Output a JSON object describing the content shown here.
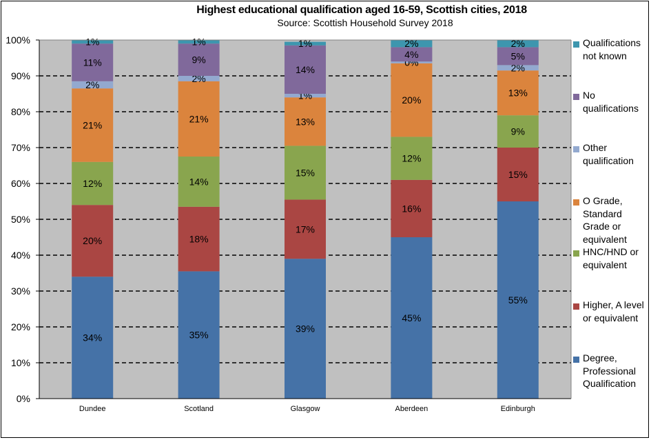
{
  "chart_data": {
    "type": "bar",
    "stacked": true,
    "title": "Highest educational qualification aged 16-59, Scottish cities, 2018",
    "subtitle": "Source: Scottish Household Survey 2018",
    "categories": [
      "Dundee",
      "Scotland",
      "Glasgow",
      "Aberdeen",
      "Edinburgh"
    ],
    "y_ticks": [
      "0%",
      "10%",
      "20%",
      "30%",
      "40%",
      "50%",
      "60%",
      "70%",
      "80%",
      "90%",
      "100%"
    ],
    "ylim": [
      0,
      100
    ],
    "grid": true,
    "legend_position": "right",
    "series": [
      {
        "name": "Degree, Professional Qualification",
        "color": "#4572A7",
        "values": [
          34,
          35.5,
          39,
          45,
          55
        ],
        "labels": [
          "34%",
          "35%",
          "39%",
          "45%",
          "55%"
        ]
      },
      {
        "name": "Higher, A level or equivalent",
        "color": "#AA4643",
        "values": [
          20,
          18,
          16.5,
          16,
          15
        ],
        "labels": [
          "20%",
          "18%",
          "17%",
          "16%",
          "15%"
        ]
      },
      {
        "name": "HNC/HND or equivalent",
        "color": "#89A54E",
        "values": [
          12,
          14,
          15,
          12,
          9
        ],
        "labels": [
          "12%",
          "14%",
          "15%",
          "12%",
          "9%"
        ]
      },
      {
        "name": "O Grade, Standard Grade or equivalent",
        "color": "#DB843D",
        "values": [
          20.5,
          21,
          13.5,
          20.5,
          12.5
        ],
        "labels": [
          "21%",
          "21%",
          "13%",
          "20%",
          "13%"
        ]
      },
      {
        "name": "Other qualification",
        "color": "#93A9CF",
        "values": [
          2,
          1.5,
          1,
          0.5,
          1.5
        ],
        "labels": [
          "2%",
          "2%",
          "1%",
          "0%",
          "2%"
        ]
      },
      {
        "name": "No qualifications",
        "color": "#80699B",
        "values": [
          10.5,
          9,
          13.5,
          4,
          5
        ],
        "labels": [
          "11%",
          "9%",
          "14%",
          "4%",
          "5%"
        ]
      },
      {
        "name": "Qualifications not known",
        "color": "#3D96AE",
        "values": [
          1,
          1,
          1,
          2,
          2
        ],
        "labels": [
          "1%",
          "1%",
          "1%",
          "2%",
          "2%"
        ]
      }
    ]
  }
}
